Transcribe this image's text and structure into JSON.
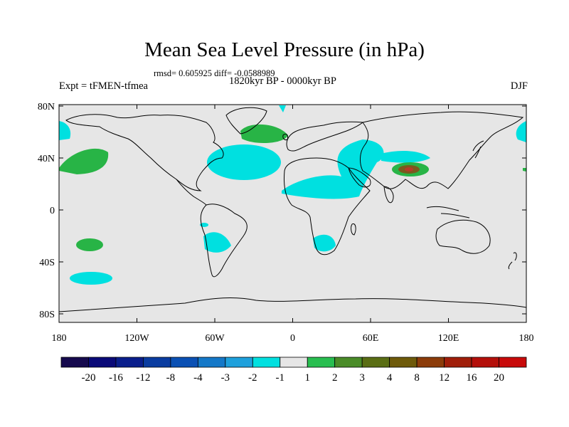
{
  "title": "Mean Sea Level Pressure (in hPa)",
  "stats_line": "rmsd= 0.605925 diff= -0.0588989",
  "left_label": "Expt = tFMEN-tfmea",
  "center_label": "1820kyr BP - 0000kyr BP",
  "right_label": "DJF",
  "map": {
    "lat_ticks": [
      "80N",
      "40N",
      "0",
      "40S",
      "80S"
    ],
    "lon_ticks": [
      "180",
      "120W",
      "60W",
      "0",
      "60E",
      "120E",
      "180"
    ],
    "background_color": "#e6e6e6"
  },
  "colorbar": {
    "labels": [
      "-20",
      "-16",
      "-12",
      "-8",
      "-4",
      "-3",
      "-2",
      "-1",
      "1",
      "2",
      "3",
      "4",
      "8",
      "12",
      "16",
      "20"
    ],
    "colors": [
      "#160a4e",
      "#0a0a78",
      "#0a1e8c",
      "#0a3ca0",
      "#0a50b4",
      "#1478c8",
      "#1ea0dc",
      "#00e0e0",
      "#e6e6e6",
      "#28be50",
      "#4a8c28",
      "#5a6e14",
      "#6e5a0a",
      "#8c3c0a",
      "#a01e0a",
      "#b40f0a",
      "#c80a0a"
    ]
  },
  "colors": {
    "negative_fill": "#00e0e0",
    "positive_fill": "#28b446",
    "brown_fill": "#7a5a1e",
    "red_fill": "#b43c28"
  }
}
